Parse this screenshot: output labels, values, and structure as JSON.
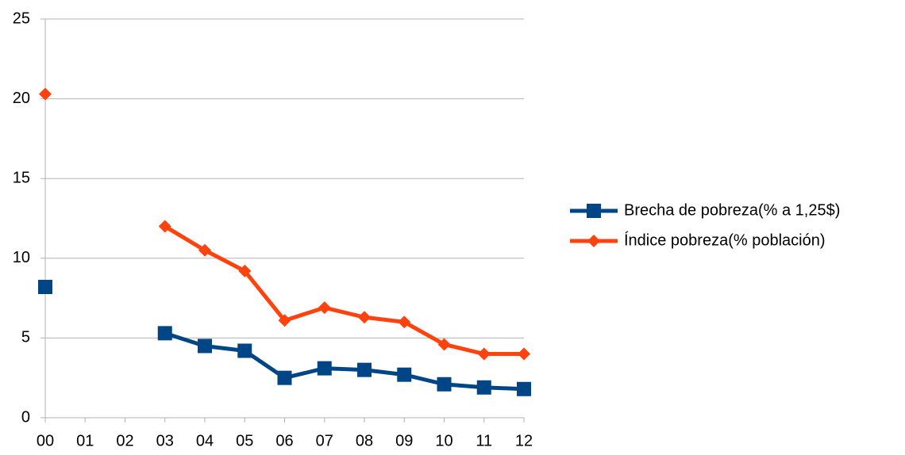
{
  "chart_data": {
    "type": "line",
    "categories": [
      "00",
      "01",
      "02",
      "03",
      "04",
      "05",
      "06",
      "07",
      "08",
      "09",
      "10",
      "11",
      "12"
    ],
    "series": [
      {
        "name": "Brecha de pobreza(% a 1,25$)",
        "color": "#004586",
        "marker": "square",
        "values": [
          8.2,
          null,
          null,
          5.3,
          4.5,
          4.2,
          2.5,
          3.1,
          3.0,
          2.7,
          2.1,
          1.9,
          1.8
        ]
      },
      {
        "name": "Índice pobreza(% población)",
        "color": "#ff420e",
        "marker": "diamond",
        "values": [
          20.3,
          null,
          null,
          12.0,
          10.5,
          9.2,
          6.1,
          6.9,
          6.3,
          6.0,
          4.6,
          4.0,
          4.0
        ]
      }
    ],
    "ylim": [
      0,
      25
    ],
    "yticks": [
      0,
      5,
      10,
      15,
      20,
      25
    ],
    "grid": true,
    "legend": "right"
  }
}
